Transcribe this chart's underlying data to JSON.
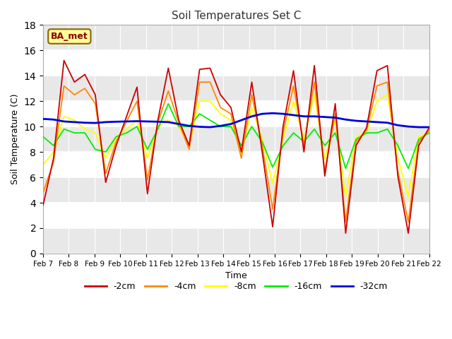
{
  "title": "Soil Temperatures Set C",
  "xlabel": "Time",
  "ylabel": "Soil Temperature (C)",
  "ylim": [
    0,
    18
  ],
  "yticks": [
    0,
    2,
    4,
    6,
    8,
    10,
    12,
    14,
    16,
    18
  ],
  "xtick_labels": [
    "Feb 7",
    "Feb 8",
    "Feb 9",
    "Feb 10",
    "Feb 11",
    "Feb 12",
    "Feb 13",
    "Feb 14",
    "Feb 15",
    "Feb 16",
    "Feb 17",
    "Feb 18",
    "Feb 19",
    "Feb 20",
    "Feb 21",
    "Feb 22"
  ],
  "fig_bg": "#ffffff",
  "plot_bg": "#ffffff",
  "band_colors": [
    "#e8e8e8",
    "#ffffff"
  ],
  "grid_color": "#ffffff",
  "line_colors": {
    "-2cm": "#cc0000",
    "-4cm": "#ff8800",
    "-8cm": "#ffff00",
    "-16cm": "#00ee00",
    "-32cm": "#0000dd"
  },
  "annotation_text": "BA_met",
  "annotation_bg": "#ffff99",
  "annotation_border": "#886600",
  "annotation_text_color": "#880000",
  "cm2": [
    3.8,
    7.5,
    15.2,
    13.5,
    14.1,
    12.5,
    5.6,
    8.5,
    10.8,
    13.1,
    4.7,
    10.5,
    14.6,
    10.5,
    8.5,
    14.5,
    14.6,
    12.5,
    11.5,
    8.0,
    13.5,
    8.0,
    2.1,
    10.0,
    14.4,
    8.0,
    14.8,
    6.1,
    11.8,
    1.6,
    8.5,
    9.9,
    14.4,
    14.8,
    6.1,
    1.6,
    8.5,
    9.9
  ],
  "cm4": [
    4.8,
    7.2,
    13.2,
    12.5,
    13.0,
    11.8,
    6.3,
    8.8,
    10.4,
    12.0,
    5.8,
    10.3,
    12.8,
    10.3,
    8.2,
    13.5,
    13.5,
    11.5,
    11.0,
    7.5,
    12.5,
    8.5,
    3.5,
    9.5,
    13.2,
    8.5,
    13.5,
    6.5,
    11.0,
    2.5,
    8.8,
    9.7,
    13.2,
    13.5,
    6.5,
    2.5,
    8.8,
    9.7
  ],
  "cm8": [
    7.0,
    8.0,
    10.8,
    10.5,
    9.8,
    9.5,
    7.5,
    9.0,
    9.8,
    10.5,
    7.5,
    10.0,
    10.5,
    10.0,
    8.5,
    12.0,
    12.0,
    11.0,
    10.5,
    7.8,
    11.5,
    9.0,
    5.5,
    9.0,
    12.0,
    9.0,
    12.5,
    7.5,
    10.5,
    4.5,
    9.2,
    9.5,
    12.0,
    12.5,
    7.5,
    4.5,
    9.2,
    9.5
  ],
  "cm16": [
    9.2,
    8.5,
    9.8,
    9.5,
    9.5,
    8.2,
    8.0,
    9.2,
    9.5,
    10.0,
    8.2,
    9.8,
    11.8,
    10.0,
    10.0,
    11.0,
    10.5,
    10.0,
    10.0,
    8.5,
    10.0,
    8.8,
    6.8,
    8.5,
    9.5,
    8.8,
    9.8,
    8.5,
    9.5,
    6.7,
    9.0,
    9.5,
    9.5,
    9.8,
    8.5,
    6.7,
    9.0,
    9.5
  ],
  "cm32": [
    10.6,
    10.55,
    10.4,
    10.35,
    10.3,
    10.28,
    10.35,
    10.38,
    10.4,
    10.42,
    10.4,
    10.38,
    10.35,
    10.2,
    10.05,
    9.98,
    9.95,
    10.05,
    10.2,
    10.5,
    10.8,
    11.0,
    11.05,
    11.0,
    10.9,
    10.8,
    10.8,
    10.75,
    10.7,
    10.55,
    10.45,
    10.4,
    10.35,
    10.3,
    10.1,
    10.0,
    9.95,
    9.95
  ]
}
